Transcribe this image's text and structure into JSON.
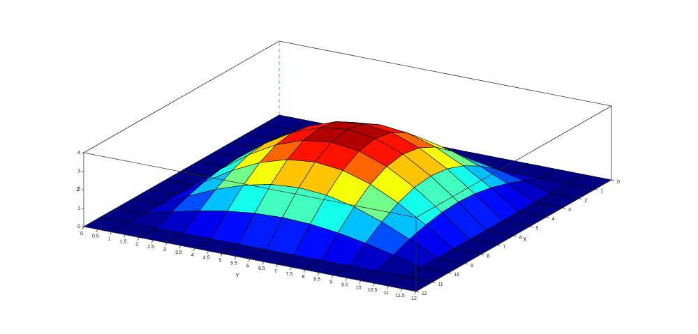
{
  "chart_data": {
    "type": "surface",
    "colormap": "jet",
    "xlabel": "X",
    "ylabel": "Y",
    "zlabel": "Z",
    "x": [
      0,
      1,
      2,
      3,
      4,
      5,
      6,
      7,
      8,
      9,
      10,
      11,
      12
    ],
    "y": [
      0,
      1,
      2,
      3,
      4,
      5,
      6,
      7,
      8,
      9,
      10,
      11,
      12
    ],
    "z": [
      [
        0,
        0,
        0,
        0,
        0,
        0,
        0,
        0,
        0,
        0,
        0,
        0,
        0
      ],
      [
        0,
        0,
        0,
        0,
        0,
        0,
        0,
        0,
        0,
        0,
        0,
        0,
        0
      ],
      [
        0,
        0,
        0.38,
        0.73,
        1.0,
        1.18,
        1.24,
        1.18,
        1.0,
        0.73,
        0.38,
        0,
        0
      ],
      [
        0,
        0,
        0.73,
        1.38,
        1.9,
        2.24,
        2.35,
        2.24,
        1.9,
        1.38,
        0.73,
        0,
        0
      ],
      [
        0,
        0,
        1.0,
        1.9,
        2.62,
        3.08,
        3.24,
        3.08,
        2.62,
        1.9,
        1.0,
        0,
        0
      ],
      [
        0,
        0,
        1.18,
        2.24,
        3.08,
        3.62,
        3.8,
        3.62,
        3.08,
        2.24,
        1.18,
        0,
        0
      ],
      [
        0,
        0,
        1.24,
        2.35,
        3.24,
        3.8,
        4,
        3.8,
        3.24,
        2.35,
        1.24,
        0,
        0
      ],
      [
        0,
        0,
        1.18,
        2.24,
        3.08,
        3.62,
        3.8,
        3.62,
        3.08,
        2.24,
        1.18,
        0,
        0
      ],
      [
        0,
        0,
        1.0,
        1.9,
        2.62,
        3.08,
        3.24,
        3.08,
        2.62,
        1.9,
        1.0,
        0,
        0
      ],
      [
        0,
        0,
        0.73,
        1.38,
        1.9,
        2.24,
        2.35,
        2.24,
        1.9,
        1.38,
        0.73,
        0,
        0
      ],
      [
        0,
        0,
        0.38,
        0.73,
        1.0,
        1.18,
        1.24,
        1.18,
        1.0,
        0.73,
        0.38,
        0,
        0
      ],
      [
        0,
        0,
        0,
        0,
        0,
        0,
        0,
        0,
        0,
        0,
        0,
        0,
        0
      ],
      [
        0,
        0,
        0,
        0,
        0,
        0,
        0,
        0,
        0,
        0,
        0,
        0,
        0
      ]
    ],
    "xlim": [
      0,
      12
    ],
    "ylim": [
      0,
      12
    ],
    "zlim": [
      0,
      4
    ],
    "xticks": [
      0,
      1,
      2,
      3,
      4,
      5,
      6,
      7,
      8,
      9,
      10,
      11,
      12
    ],
    "yticks": [
      0,
      0.5,
      1,
      1.5,
      2,
      2.5,
      3,
      3.5,
      4,
      4.5,
      5,
      5.5,
      6,
      6.5,
      7,
      7.5,
      8,
      8.5,
      9,
      9.5,
      10,
      10.5,
      11,
      11.5,
      12
    ],
    "zticks": [
      0,
      1,
      2,
      3,
      4
    ]
  }
}
